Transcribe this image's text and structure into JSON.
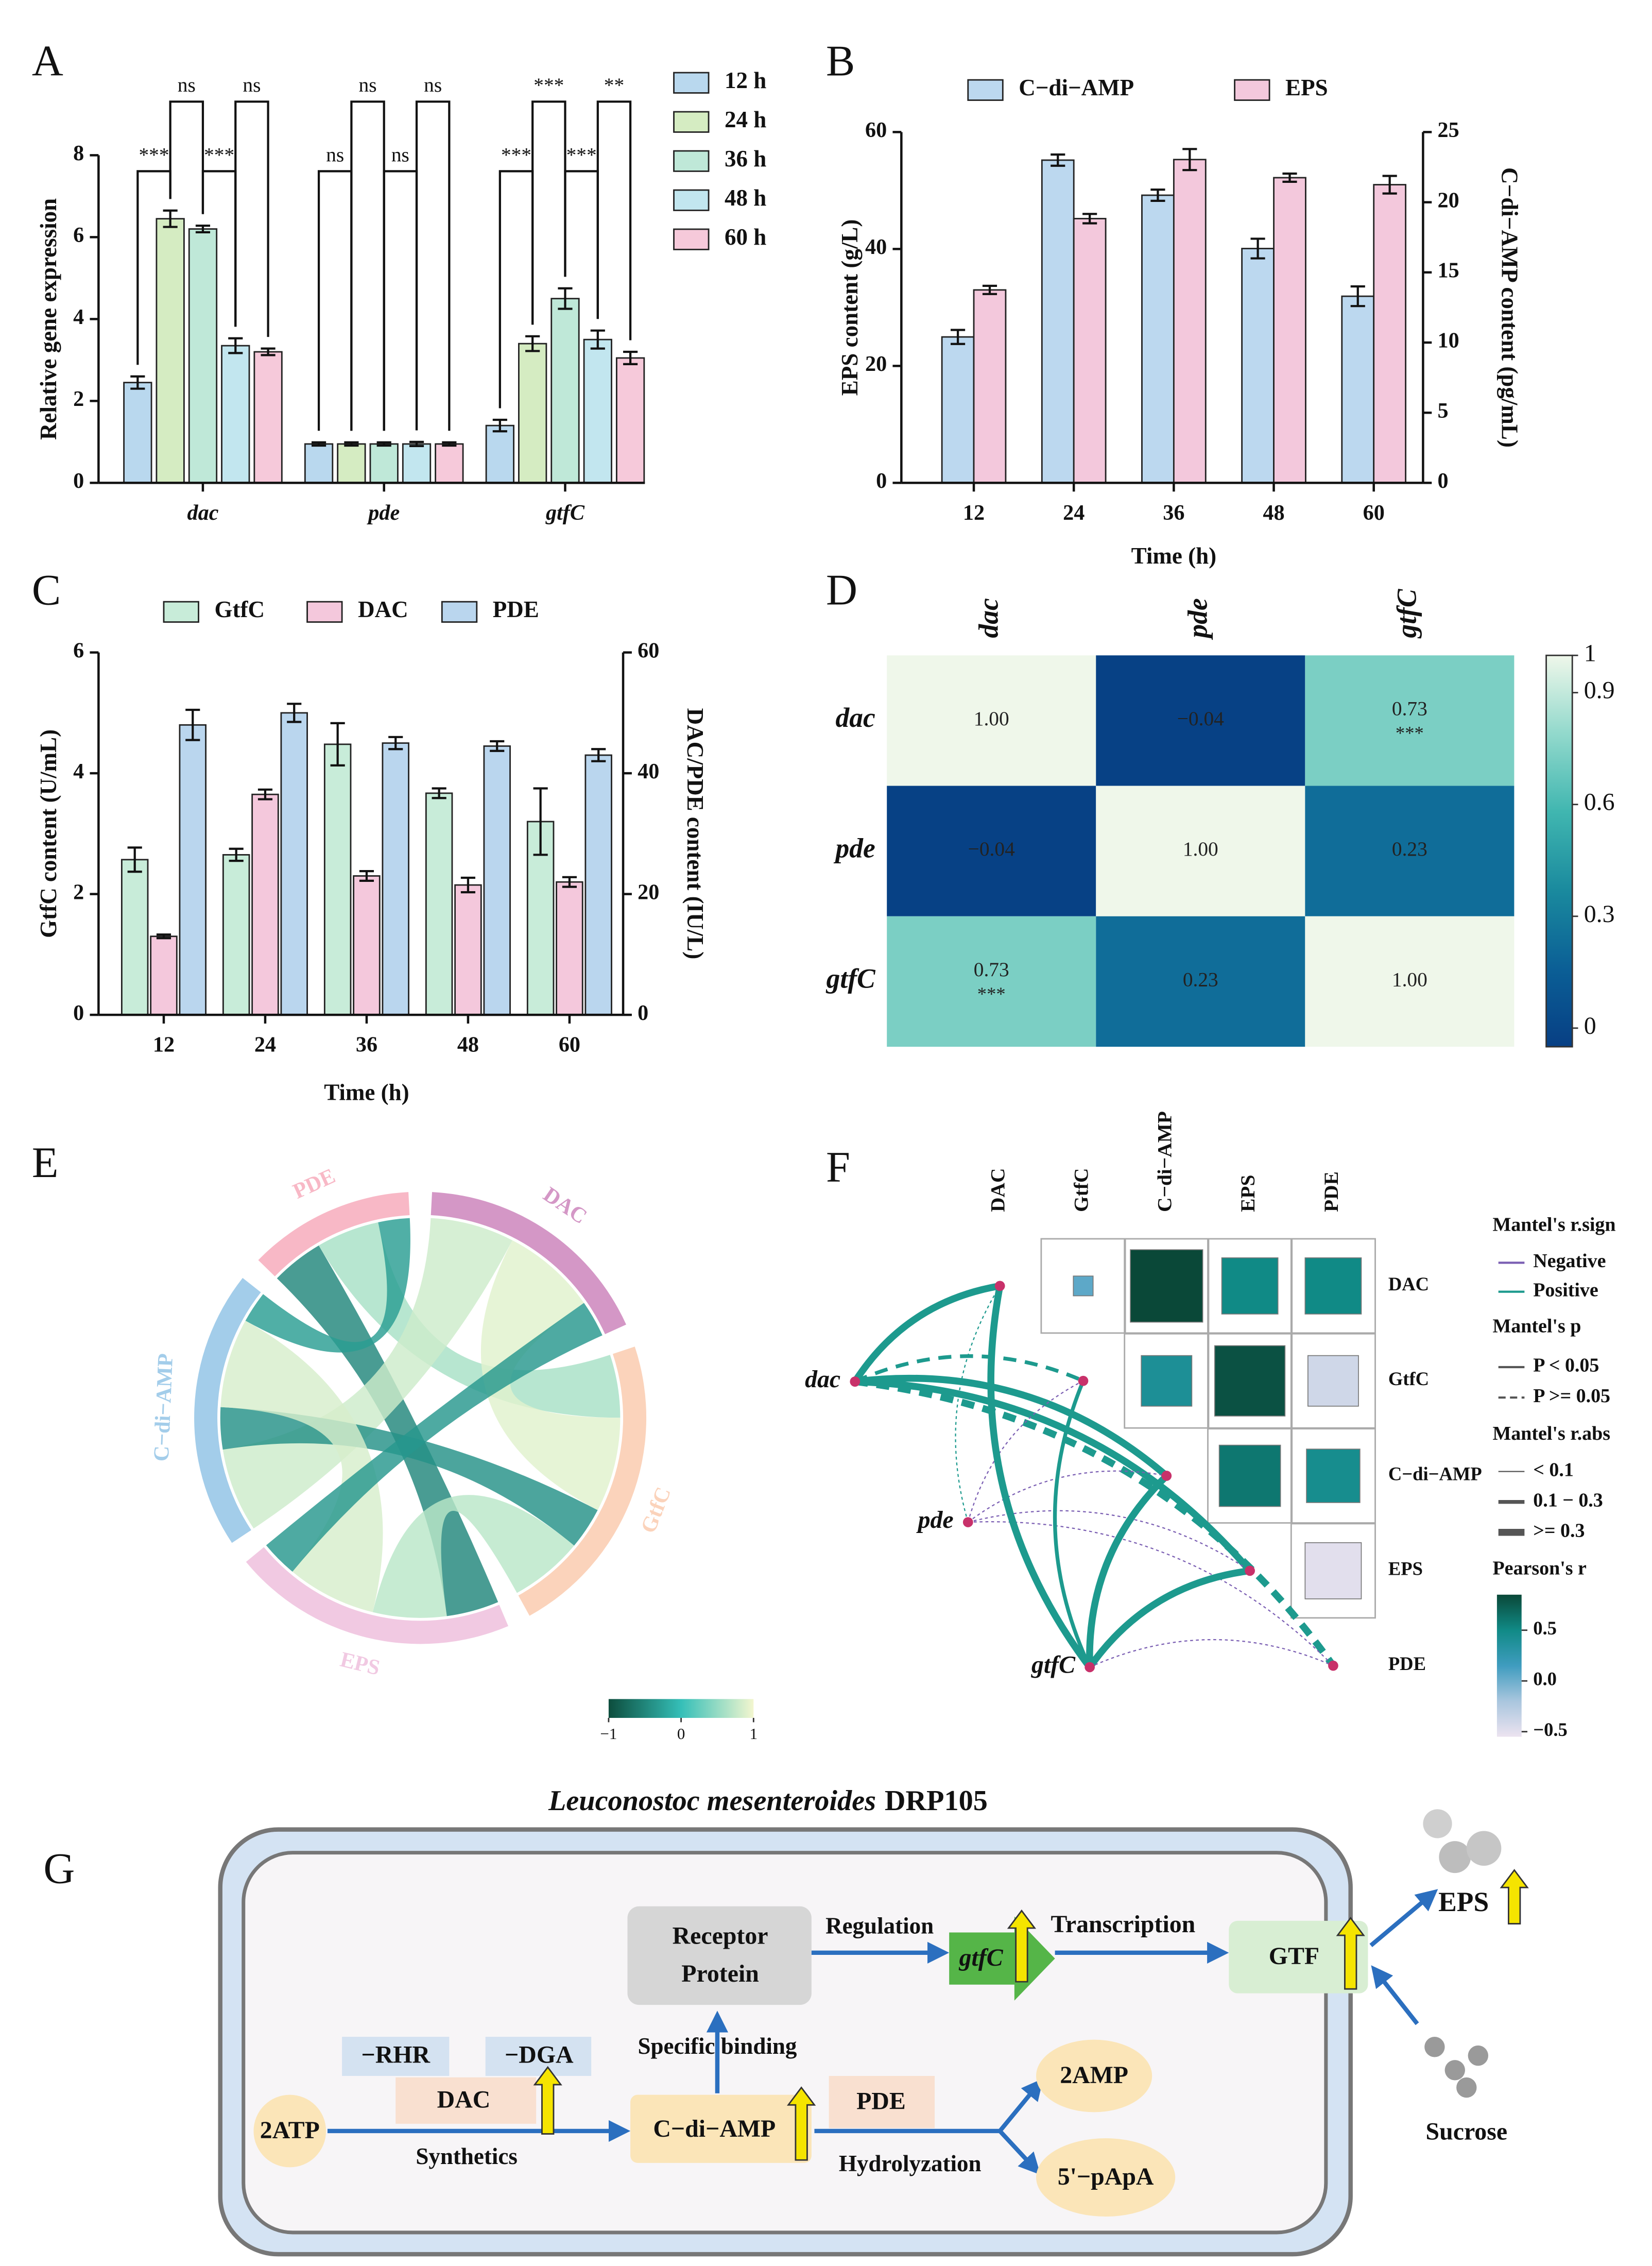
{
  "chart_data": [
    {
      "panel": "A",
      "type": "bar",
      "ylabel": "Relative gene expression",
      "categories": [
        "dac",
        "pde",
        "gtfC"
      ],
      "series": [
        {
          "name": "12 h",
          "color": "#b9d8ee",
          "values": [
            2.45,
            0.95,
            1.4
          ],
          "errors": [
            0.15,
            0.04,
            0.14
          ]
        },
        {
          "name": "24 h",
          "color": "#d5ecc2",
          "values": [
            6.45,
            0.95,
            3.4
          ],
          "errors": [
            0.2,
            0.04,
            0.18
          ]
        },
        {
          "name": "36 h",
          "color": "#bfe8d8",
          "values": [
            6.2,
            0.95,
            4.5
          ],
          "errors": [
            0.08,
            0.04,
            0.25
          ]
        },
        {
          "name": "48 h",
          "color": "#c2e6ef",
          "values": [
            3.35,
            0.95,
            3.5
          ],
          "errors": [
            0.18,
            0.05,
            0.22
          ]
        },
        {
          "name": "60 h",
          "color": "#f6c9da",
          "values": [
            3.2,
            0.95,
            3.05
          ],
          "errors": [
            0.08,
            0.04,
            0.15
          ]
        }
      ],
      "ylim": [
        0,
        8
      ],
      "yticks": [
        0,
        2,
        4,
        6,
        8
      ],
      "annotations": [
        {
          "category": 0,
          "bars": [
            0,
            1
          ],
          "label": "***"
        },
        {
          "category": 0,
          "bars": [
            1,
            2
          ],
          "label": "ns"
        },
        {
          "category": 0,
          "bars": [
            2,
            3
          ],
          "label": "***"
        },
        {
          "category": 0,
          "bars": [
            3,
            4
          ],
          "label": "ns"
        },
        {
          "category": 1,
          "bars": [
            0,
            1
          ],
          "label": "ns"
        },
        {
          "category": 1,
          "bars": [
            1,
            2
          ],
          "label": "ns"
        },
        {
          "category": 1,
          "bars": [
            2,
            3
          ],
          "label": "ns"
        },
        {
          "category": 1,
          "bars": [
            3,
            4
          ],
          "label": "ns"
        },
        {
          "category": 2,
          "bars": [
            0,
            1
          ],
          "label": "***"
        },
        {
          "category": 2,
          "bars": [
            1,
            2
          ],
          "label": "***"
        },
        {
          "category": 2,
          "bars": [
            2,
            3
          ],
          "label": "***"
        },
        {
          "category": 2,
          "bars": [
            3,
            4
          ],
          "label": "**"
        }
      ]
    },
    {
      "panel": "B",
      "type": "bar",
      "xlabel": "Time (h)",
      "ylabel": "EPS content (g/L)",
      "y2label": "C−di−AMP content (pg/mL)",
      "categories": [
        "12",
        "24",
        "36",
        "48",
        "60"
      ],
      "series": [
        {
          "name": "C−di−AMP",
          "color": "#bcd8ef",
          "axis": "y2",
          "values": [
            10.4,
            23,
            20.5,
            16.7,
            13.3
          ],
          "errors": [
            0.5,
            0.4,
            0.4,
            0.7,
            0.7
          ]
        },
        {
          "name": "EPS",
          "color": "#f3c8dc",
          "values": [
            33,
            45.2,
            55.3,
            52.2,
            51
          ],
          "errors": [
            0.7,
            0.8,
            1.8,
            0.7,
            1.5
          ]
        }
      ],
      "ylim": [
        0,
        60
      ],
      "yticks": [
        0,
        20,
        40,
        60
      ],
      "y2lim": [
        0,
        25
      ],
      "y2ticks": [
        0,
        5,
        10,
        15,
        20,
        25
      ]
    },
    {
      "panel": "C",
      "type": "bar",
      "xlabel": "Time (h)",
      "ylabel": "GtfC content (U/mL)",
      "y2label": "DAC/PDE content (IU/L)",
      "categories": [
        "12",
        "24",
        "36",
        "48",
        "60"
      ],
      "series": [
        {
          "name": "GtfC",
          "color": "#c8ecd9",
          "values": [
            2.57,
            2.65,
            4.48,
            3.67,
            3.2
          ],
          "errors": [
            0.2,
            0.1,
            0.35,
            0.08,
            0.55
          ]
        },
        {
          "name": "DAC",
          "color": "#f4c8dc",
          "axis": "y2",
          "values": [
            13,
            36.5,
            23,
            21.5,
            22
          ],
          "errors": [
            0.3,
            0.8,
            0.8,
            1.2,
            0.8
          ]
        },
        {
          "name": "PDE",
          "color": "#bad6ee",
          "axis": "y2",
          "values": [
            48,
            50,
            45,
            44.5,
            43
          ],
          "errors": [
            2.5,
            1.5,
            1,
            0.8,
            1
          ]
        }
      ],
      "ylim": [
        0,
        6
      ],
      "yticks": [
        0,
        2,
        4,
        6
      ],
      "y2lim": [
        0,
        60
      ],
      "y2ticks": [
        0,
        20,
        40,
        60
      ]
    },
    {
      "panel": "D",
      "type": "heatmap",
      "labels": [
        "dac",
        "pde",
        "gtfC"
      ],
      "values": [
        [
          1,
          -0.04,
          0.73
        ],
        [
          -0.04,
          1,
          0.23
        ],
        [
          0.73,
          0.23,
          1
        ]
      ],
      "value_labels": [
        [
          "1.00",
          "−0.04",
          "0.73"
        ],
        [
          "−0.04",
          "1.00",
          "0.23"
        ],
        [
          "0.73",
          "0.23",
          "1.00"
        ]
      ],
      "annotations": [
        {
          "row": 0,
          "col": 2,
          "label": "***"
        },
        {
          "row": 2,
          "col": 0,
          "label": "***"
        }
      ],
      "clim": [
        -0.05,
        1
      ],
      "cticks": [
        0,
        0.3,
        0.6,
        0.9,
        1
      ],
      "colormap": [
        "#073f84",
        "#0b5f96",
        "#1a8a9e",
        "#40b6b0",
        "#92d9cc",
        "#eff7ea"
      ]
    },
    {
      "panel": "E",
      "type": "chord",
      "sectors": [
        {
          "name": "DAC",
          "color": "#d497c6"
        },
        {
          "name": "GtfC",
          "color": "#fbd3bb"
        },
        {
          "name": "EPS",
          "color": "#f1c9e2"
        },
        {
          "name": "C−di−AMP",
          "color": "#a3cdea"
        },
        {
          "name": "PDE",
          "color": "#f8b8c6"
        }
      ],
      "links": [
        {
          "source": 4,
          "target": 2,
          "value": -0.5
        },
        {
          "source": 4,
          "target": 1,
          "value": 0.6
        },
        {
          "source": 0,
          "target": 3,
          "value": 0.8
        },
        {
          "source": 0,
          "target": 1,
          "value": 0.9
        },
        {
          "source": 1,
          "target": 3,
          "value": -0.4
        },
        {
          "source": 1,
          "target": 2,
          "value": 0.7
        },
        {
          "source": 3,
          "target": 2,
          "value": 0.85
        },
        {
          "source": 3,
          "target": 4,
          "value": -0.3
        },
        {
          "source": 0,
          "target": 2,
          "value": -0.35
        }
      ],
      "clim": [
        -1,
        1
      ],
      "cticks": [
        {
          "value": -1,
          "label": "−1"
        },
        0,
        1
      ],
      "colormap": [
        "#0d4d3d",
        "#35bfb8",
        "#f3f6cf"
      ]
    },
    {
      "panel": "F",
      "type": "mantel",
      "variables": [
        "DAC",
        "GtfC",
        "C−di−AMP",
        "EPS",
        "PDE"
      ],
      "pairs": [
        {
          "row": 0,
          "col": 1,
          "r": 0.05
        },
        {
          "row": 0,
          "col": 2,
          "r": 0.85
        },
        {
          "row": 0,
          "col": 3,
          "r": 0.5
        },
        {
          "row": 0,
          "col": 4,
          "r": 0.5
        },
        {
          "row": 1,
          "col": 2,
          "r": 0.4
        },
        {
          "row": 1,
          "col": 3,
          "r": 0.8
        },
        {
          "row": 1,
          "col": 4,
          "r": -0.4
        },
        {
          "row": 2,
          "col": 3,
          "r": 0.6
        },
        {
          "row": 2,
          "col": 4,
          "r": 0.45
        },
        {
          "row": 3,
          "col": 4,
          "r": -0.5
        }
      ],
      "sources": [
        "dac",
        "pde",
        "gtfC"
      ],
      "links": [
        {
          "source": 0,
          "target": 0,
          "r": 0.5,
          "p": 0.01
        },
        {
          "source": 0,
          "target": 1,
          "r": 0.2,
          "p": 0.12
        },
        {
          "source": 0,
          "target": 2,
          "r": 0.5,
          "p": 0.01
        },
        {
          "source": 0,
          "target": 3,
          "r": 0.5,
          "p": 0.01
        },
        {
          "source": 0,
          "target": 4,
          "r": 0.35,
          "p": 0.08
        },
        {
          "source": 1,
          "target": 0,
          "r": 0.05,
          "p": 0.6
        },
        {
          "source": 1,
          "target": 1,
          "r": -0.05,
          "p": 0.7
        },
        {
          "source": 1,
          "target": 2,
          "r": -0.05,
          "p": 0.7
        },
        {
          "source": 1,
          "target": 3,
          "r": -0.05,
          "p": 0.7
        },
        {
          "source": 1,
          "target": 4,
          "r": -0.05,
          "p": 0.7
        },
        {
          "source": 2,
          "target": 0,
          "r": 0.5,
          "p": 0.01
        },
        {
          "source": 2,
          "target": 1,
          "r": 0.25,
          "p": 0.03
        },
        {
          "source": 2,
          "target": 2,
          "r": 0.5,
          "p": 0.01
        },
        {
          "source": 2,
          "target": 3,
          "r": 0.5,
          "p": 0.01
        },
        {
          "source": 2,
          "target": 4,
          "r": -0.05,
          "p": 0.7
        }
      ],
      "legend": {
        "sign_title": "Mantel's r.sign",
        "sign": [
          {
            "label": "Negative",
            "color": "#7b5fb3"
          },
          {
            "label": "Positive",
            "color": "#1d9a8e"
          }
        ],
        "p_title": "Mantel's p",
        "p_labels": [
          "P < 0.05",
          "P >= 0.05"
        ],
        "alpha": 0.05,
        "abs_title": "Mantel's r.abs",
        "abs_labels": [
          "< 0.1",
          "0.1 − 0.3",
          ">= 0.3"
        ],
        "abs_breaks": [
          0.1,
          0.3
        ],
        "color_title": "Pearson's r"
      },
      "clim": [
        -0.55,
        0.85
      ],
      "cticks": [
        0.5,
        {
          "value": 0,
          "label": "0.0"
        },
        {
          "value": -0.5,
          "label": "−0.5"
        }
      ],
      "colormap": [
        "#ece3f0",
        "#a9c6de",
        "#3f9cbf",
        "#108a86",
        "#0a4838"
      ]
    }
  ],
  "diagram": {
    "panel": "G",
    "organism": "Leuconostoc mesenteroides",
    "strain": "DRP105",
    "receptor": [
      "Receptor",
      "Protein"
    ],
    "regulation": "Regulation",
    "gene": "gtfC",
    "transcription": "Transcription",
    "enzyme": "GTF",
    "product": "EPS",
    "substrate": "Sucrose",
    "domains": [
      "−RHR",
      "−DGA"
    ],
    "synthase": "DAC",
    "precursor": "2ATP",
    "synthesis": "Synthetics",
    "messenger": "C−di−AMP",
    "binding": "Specific binding",
    "hydrolase": "PDE",
    "hydrolysis": "Hydrolyzation",
    "products": [
      "2AMP",
      "5'−pApA"
    ]
  }
}
